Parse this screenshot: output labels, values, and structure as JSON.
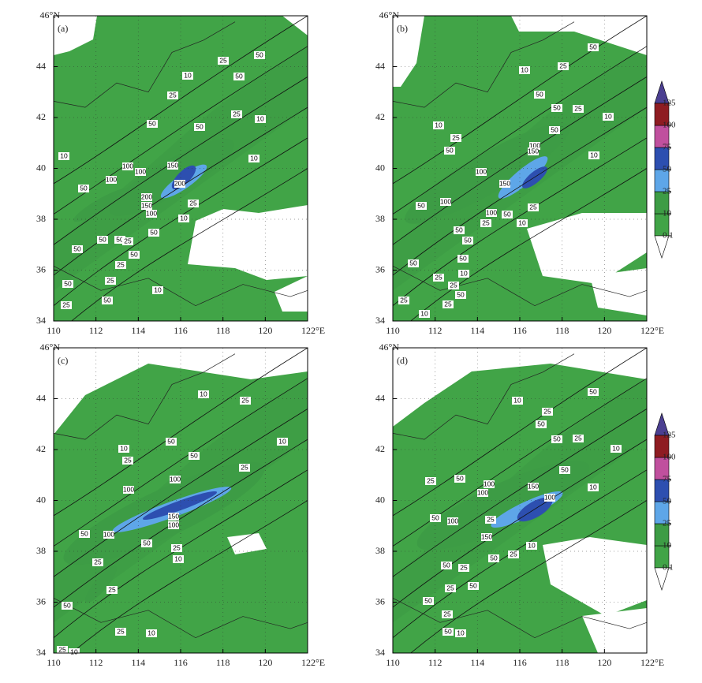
{
  "panels": [
    {
      "label": "(a)",
      "contour_labels": [
        25,
        50,
        10,
        50,
        25,
        25,
        50,
        50,
        10,
        10,
        10,
        100,
        100,
        150,
        100,
        50,
        200,
        200,
        150,
        25,
        100,
        10,
        50,
        50,
        50,
        25,
        50,
        50,
        25,
        50,
        25,
        10,
        50,
        25
      ]
    },
    {
      "label": "(b)",
      "contour_labels": [
        50,
        25,
        10,
        50,
        50,
        25,
        10,
        10,
        25,
        50,
        50,
        100,
        150,
        10,
        100,
        150,
        100,
        50,
        25,
        100,
        50,
        10,
        25,
        50,
        50,
        50,
        50,
        10,
        25,
        25,
        50,
        25,
        25,
        10
      ]
    },
    {
      "label": "(c)",
      "contour_labels": [
        10,
        25,
        10,
        50,
        25,
        50,
        10,
        25,
        100,
        100,
        150,
        100,
        50,
        100,
        50,
        25,
        10,
        25,
        25,
        50,
        25,
        10,
        25,
        10
      ]
    },
    {
      "label": "(d)",
      "contour_labels": [
        50,
        10,
        25,
        50,
        50,
        25,
        10,
        50,
        25,
        50,
        100,
        100,
        150,
        100,
        10,
        50,
        100,
        25,
        150,
        50,
        25,
        10,
        50,
        25,
        50,
        25,
        50,
        25,
        50,
        10
      ]
    }
  ],
  "axes": {
    "xlim": [
      110,
      122
    ],
    "xticks": [
      110,
      112,
      114,
      116,
      118,
      120,
      {
        "value": 122,
        "label": "122°E"
      }
    ],
    "ylim": [
      34,
      46
    ],
    "yticks": [
      34,
      36,
      38,
      40,
      42,
      {
        "value": 44,
        "label": "44"
      },
      {
        "value": 46,
        "label": "46°N"
      }
    ]
  },
  "colorbar": {
    "levels": [
      0.1,
      10,
      25,
      50,
      75,
      100,
      125
    ],
    "colors": [
      "#ffffff",
      "#41a447",
      "#3d9c45",
      "#5ea6e8",
      "#2d4fb0",
      "#c0509e",
      "#8e1c22",
      "#4b3f91"
    ]
  }
}
